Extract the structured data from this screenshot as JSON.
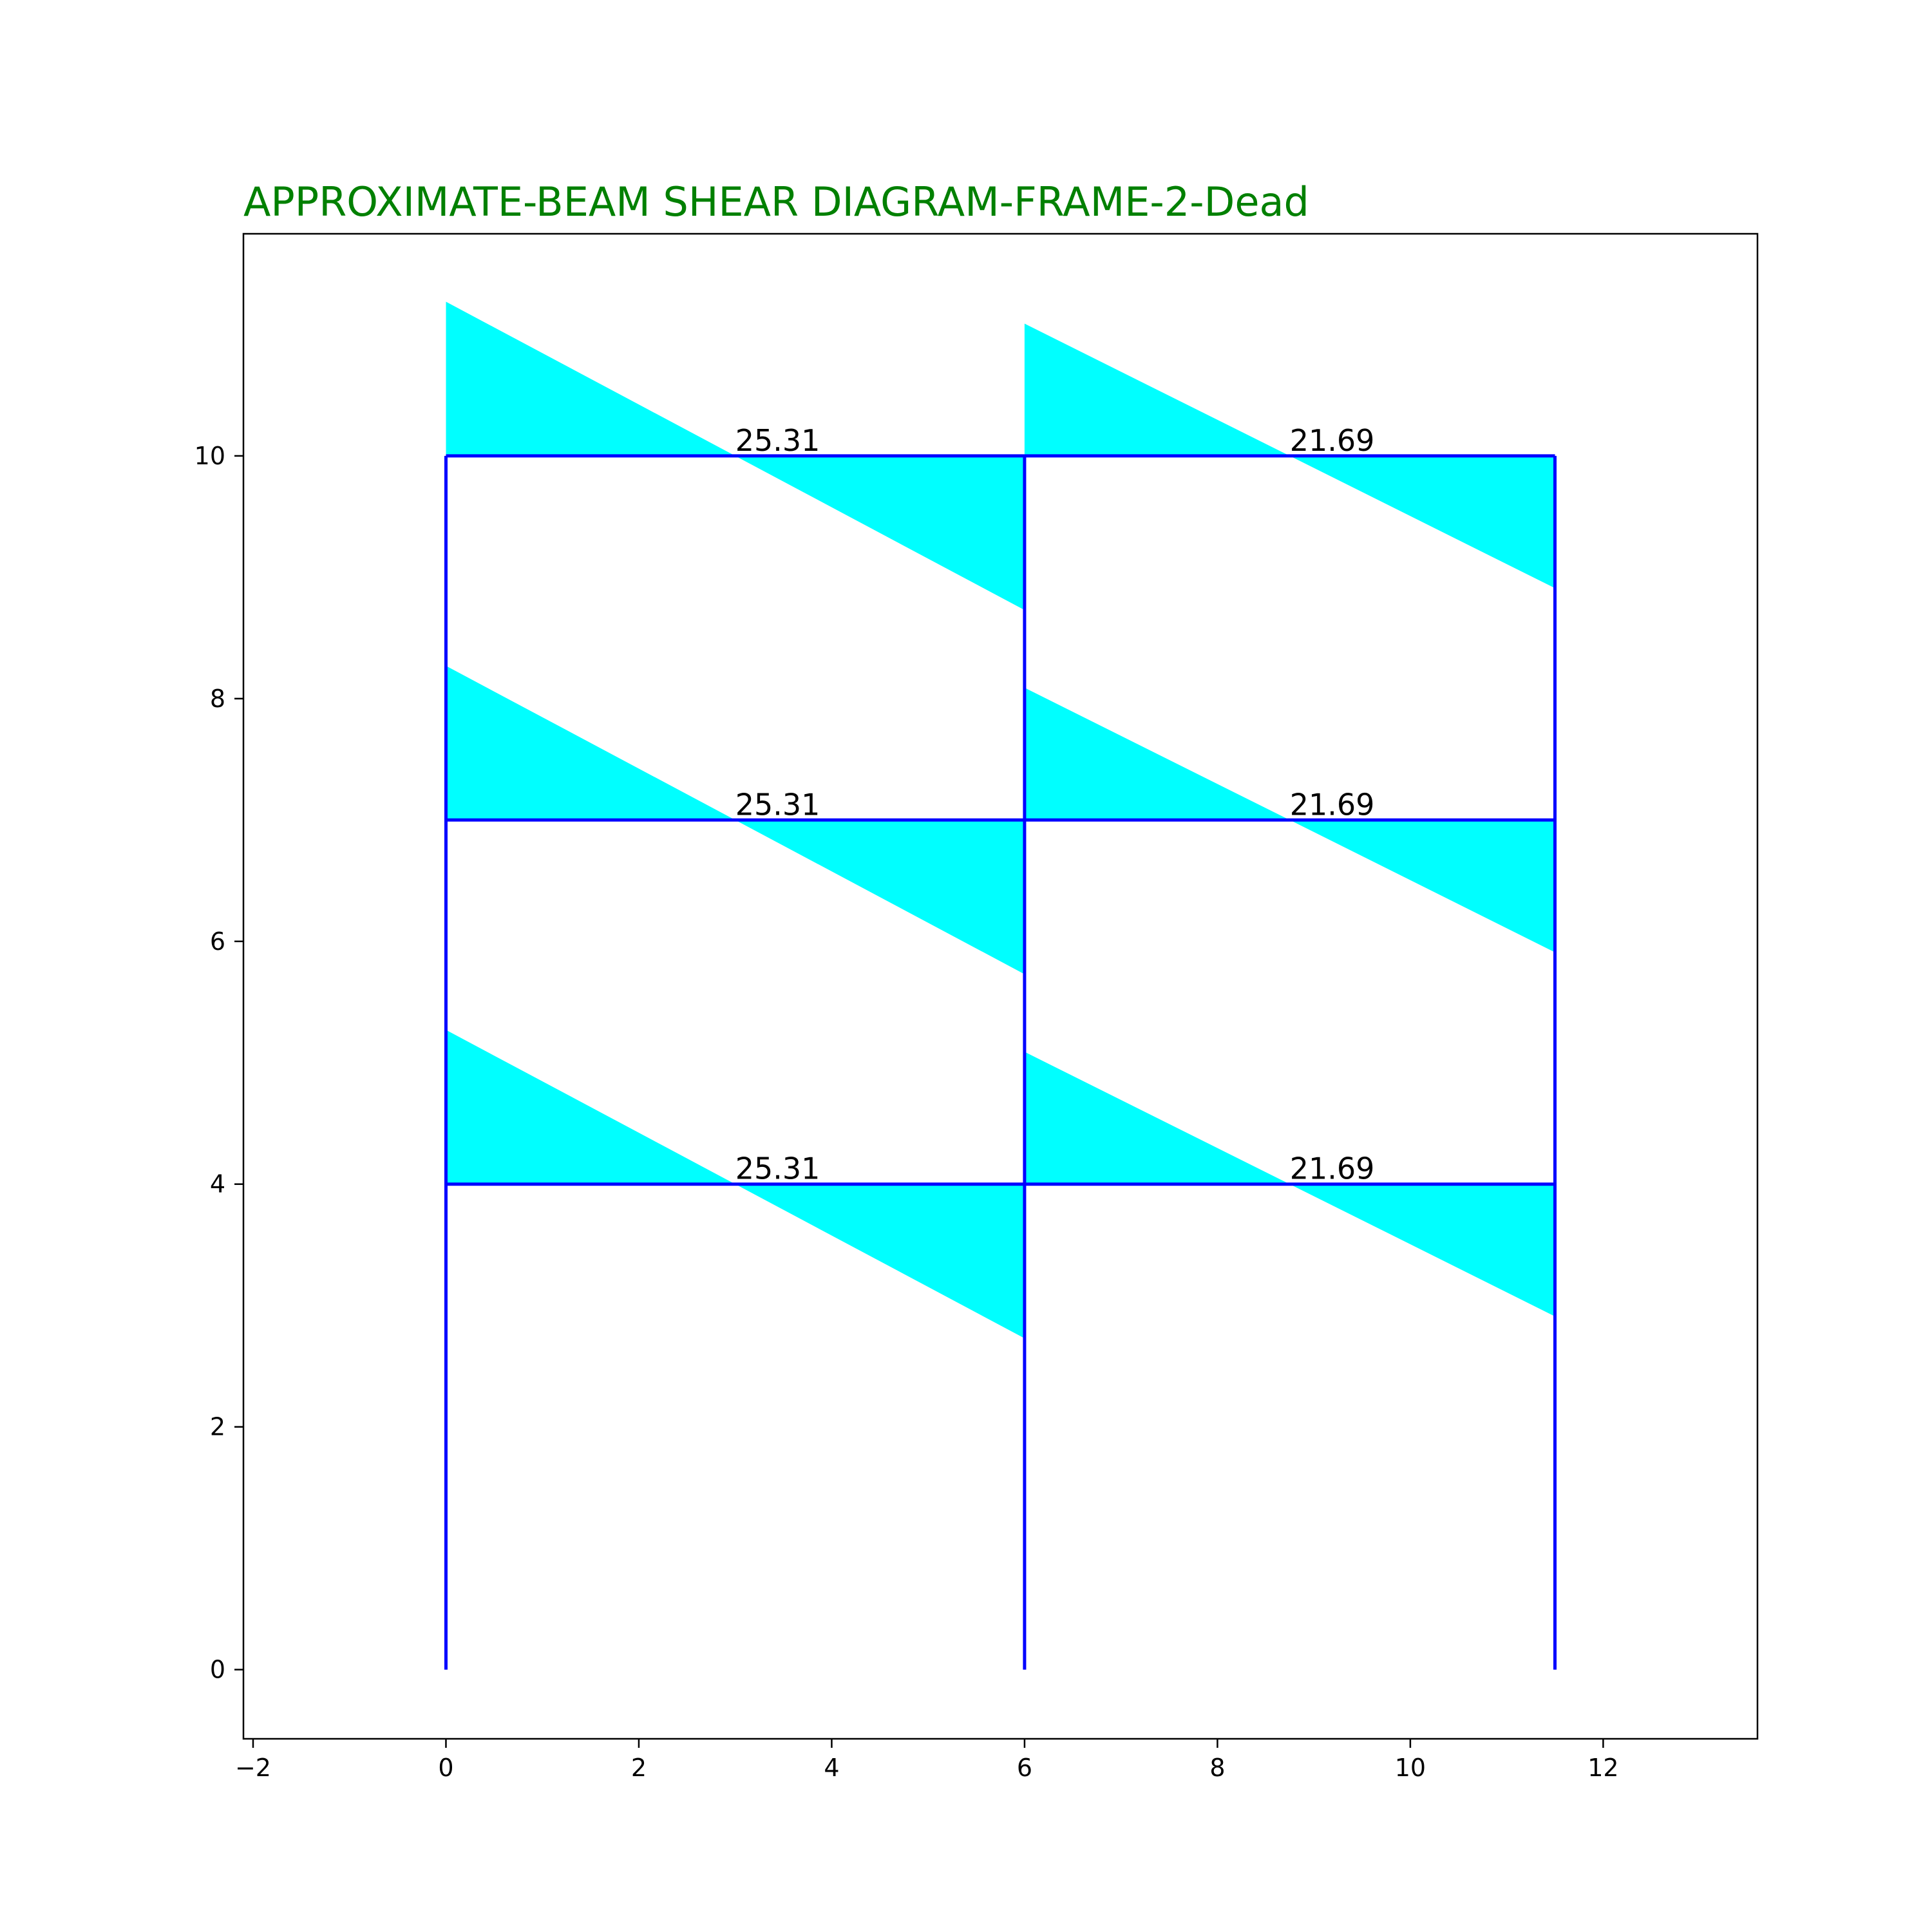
{
  "chart_data": {
    "type": "area",
    "title": "APPROXIMATE-BEAM SHEAR DIAGRAM-FRAME-2-Dead",
    "xlabel": "",
    "ylabel": "",
    "xlim": [
      -2.1,
      13.6
    ],
    "ylim": [
      -0.57,
      11.83
    ],
    "xticks": [
      -2,
      0,
      2,
      4,
      6,
      8,
      10,
      12
    ],
    "xtick_labels": [
      "−2",
      "0",
      "2",
      "4",
      "6",
      "8",
      "10",
      "12"
    ],
    "yticks": [
      0,
      2,
      4,
      6,
      8,
      10
    ],
    "ytick_labels": [
      "0",
      "2",
      "4",
      "6",
      "8",
      "10"
    ],
    "grid": false,
    "frame": {
      "columns": [
        {
          "x": 0,
          "y_bottom": 0,
          "y_top": 10
        },
        {
          "x": 6,
          "y_bottom": 0,
          "y_top": 10
        },
        {
          "x": 11.5,
          "y_bottom": 0,
          "y_top": 10
        }
      ],
      "beams": [
        {
          "x_start": 0,
          "x_end": 6,
          "y": 4
        },
        {
          "x_start": 6,
          "x_end": 11.5,
          "y": 4
        },
        {
          "x_start": 0,
          "x_end": 6,
          "y": 7
        },
        {
          "x_start": 6,
          "x_end": 11.5,
          "y": 7
        },
        {
          "x_start": 0,
          "x_end": 6,
          "y": 10
        },
        {
          "x_start": 6,
          "x_end": 11.5,
          "y": 10
        }
      ]
    },
    "shear_diagrams": [
      {
        "x_start": 0,
        "x_end": 6,
        "y_base": 4,
        "offset_start": 1.27,
        "offset_end": -1.27,
        "label": "25.31",
        "label_x": 3.0
      },
      {
        "x_start": 6,
        "x_end": 11.5,
        "y_base": 4,
        "offset_start": 1.09,
        "offset_end": -1.09,
        "label": "21.69",
        "label_x": 8.75
      },
      {
        "x_start": 0,
        "x_end": 6,
        "y_base": 7,
        "offset_start": 1.27,
        "offset_end": -1.27,
        "label": "25.31",
        "label_x": 3.0
      },
      {
        "x_start": 6,
        "x_end": 11.5,
        "y_base": 7,
        "offset_start": 1.09,
        "offset_end": -1.09,
        "label": "21.69",
        "label_x": 8.75
      },
      {
        "x_start": 0,
        "x_end": 6,
        "y_base": 10,
        "offset_start": 1.27,
        "offset_end": -1.27,
        "label": "25.31",
        "label_x": 3.0
      },
      {
        "x_start": 6,
        "x_end": 11.5,
        "y_base": 10,
        "offset_start": 1.09,
        "offset_end": -1.09,
        "label": "21.69",
        "label_x": 8.75
      }
    ],
    "colors": {
      "title": "#008000",
      "fill": "#00ffff",
      "frame": "#0000ff",
      "axes": "#000000",
      "text": "#000000"
    }
  }
}
